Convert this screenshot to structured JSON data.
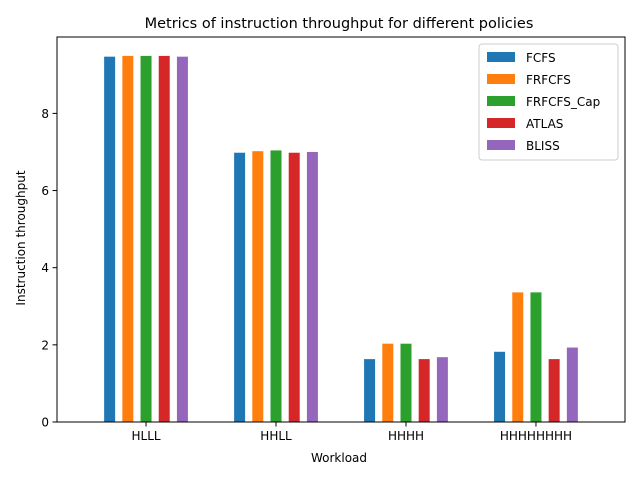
{
  "chart_data": {
    "type": "bar",
    "title": "Metrics of instruction throughput for different policies",
    "xlabel": "Workload",
    "ylabel": "Instruction throughput",
    "categories": [
      "HLLL",
      "HHLL",
      "HHHH",
      "HHHHHHHH"
    ],
    "ylim": [
      0,
      9.98
    ],
    "yticks": [
      "0",
      "2",
      "4",
      "6",
      "8"
    ],
    "grid": false,
    "legend_position": "top-right",
    "series": [
      {
        "name": "FCFS",
        "color": "#1f77b4",
        "values": [
          9.47,
          6.98,
          1.63,
          1.82
        ]
      },
      {
        "name": "FRFCFS",
        "color": "#ff7f0e",
        "values": [
          9.49,
          7.02,
          2.03,
          3.36
        ]
      },
      {
        "name": "FRFCFS_Cap",
        "color": "#2ca02c",
        "values": [
          9.49,
          7.04,
          2.03,
          3.36
        ]
      },
      {
        "name": "ATLAS",
        "color": "#d62728",
        "values": [
          9.49,
          6.98,
          1.63,
          1.63
        ]
      },
      {
        "name": "BLISS",
        "color": "#9467bd",
        "values": [
          9.47,
          7.0,
          1.68,
          1.93
        ]
      }
    ]
  }
}
